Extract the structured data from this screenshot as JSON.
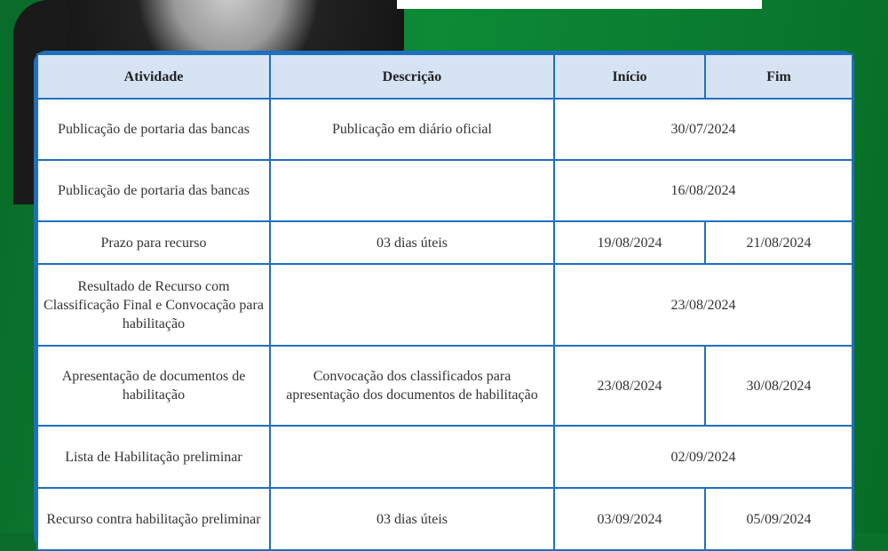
{
  "table": {
    "headers": [
      "Atividade",
      "Descrição",
      "Início",
      "Fim"
    ],
    "rows": [
      {
        "atividade": "Publicação de portaria das bancas",
        "descricao": "Publicação em diário oficial",
        "data": "30/07/2024"
      },
      {
        "atividade": "Publicação de portaria das bancas",
        "descricao": "",
        "data": "16/08/2024"
      },
      {
        "atividade": "Prazo para recurso",
        "descricao": "03 dias úteis",
        "inicio": "19/08/2024",
        "fim": "21/08/2024"
      },
      {
        "atividade": "Resultado de Recurso com Classificação Final e Convocação para habilitação",
        "descricao": "",
        "data": "23/08/2024"
      },
      {
        "atividade": "Apresentação de documentos de habilitação",
        "descricao": "Convocação dos classificados para apresentação dos documentos de habilitação",
        "inicio": "23/08/2024",
        "fim": "30/08/2024"
      },
      {
        "atividade": "Lista de Habilitação preliminar",
        "descricao": "",
        "data": "02/09/2024"
      },
      {
        "atividade": "Recurso contra habilitação preliminar",
        "descricao": "03 dias úteis",
        "inicio": "03/09/2024",
        "fim": "05/09/2024"
      }
    ]
  }
}
